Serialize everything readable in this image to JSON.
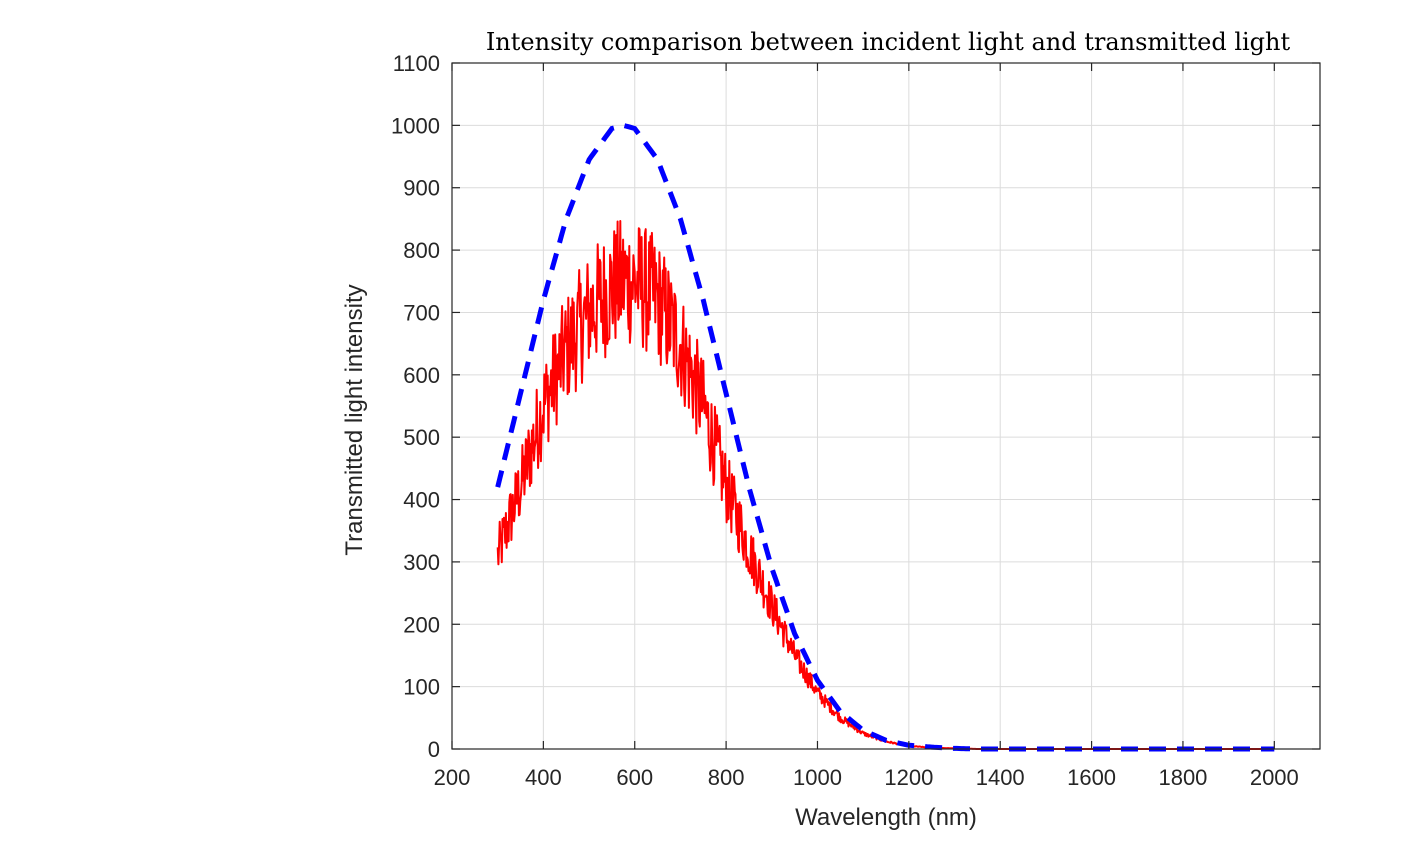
{
  "chart_data": {
    "type": "line",
    "title": "Intensity comparison between incident light and transmitted light",
    "xlabel": "Wavelength (nm)",
    "ylabel": "Transmitted light intensity",
    "xlim": [
      200,
      2100
    ],
    "ylim": [
      0,
      1100
    ],
    "xticks": [
      200,
      400,
      600,
      800,
      1000,
      1200,
      1400,
      1600,
      1800,
      2000
    ],
    "yticks": [
      0,
      100,
      200,
      300,
      400,
      500,
      600,
      700,
      800,
      900,
      1000,
      1100
    ],
    "grid": true,
    "series": [
      {
        "style": "dashed",
        "color": "#0000ff",
        "x": [
          300,
          350,
          400,
          450,
          500,
          550,
          575,
          600,
          650,
          700,
          750,
          800,
          850,
          900,
          950,
          1000,
          1050,
          1100,
          1150,
          1200,
          1250,
          1300,
          1350,
          1400,
          1500,
          1600,
          1700,
          1800,
          1900,
          2000
        ],
        "y": [
          420,
          570,
          720,
          850,
          945,
          995,
          1000,
          995,
          945,
          850,
          720,
          570,
          420,
          290,
          185,
          110,
          60,
          30,
          14,
          6,
          3,
          1,
          0,
          0,
          0,
          0,
          0,
          0,
          0,
          0
        ]
      },
      {
        "style": "solid-noisy",
        "color": "#ff0000",
        "x": [
          300,
          350,
          400,
          450,
          500,
          550,
          575,
          600,
          650,
          700,
          750,
          800,
          850,
          900,
          950,
          1000,
          1050,
          1100,
          1150,
          1200,
          1250,
          1300,
          1350,
          1400,
          1500,
          1600,
          1700,
          1800,
          1900,
          2000
        ],
        "y": [
          310,
          420,
          550,
          640,
          700,
          740,
          750,
          750,
          720,
          650,
          550,
          420,
          320,
          230,
          150,
          90,
          50,
          25,
          12,
          5,
          2,
          1,
          0,
          0,
          0,
          0,
          0,
          0,
          0,
          0
        ]
      }
    ]
  }
}
